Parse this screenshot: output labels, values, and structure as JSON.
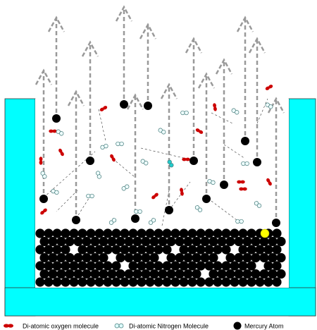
{
  "legend": {
    "items": [
      {
        "label": "Di-atomic oxygen molecule"
      },
      {
        "label": "Di-atomic Nitrogen Molecule"
      },
      {
        "label": "Mercury Atom"
      }
    ]
  }
}
